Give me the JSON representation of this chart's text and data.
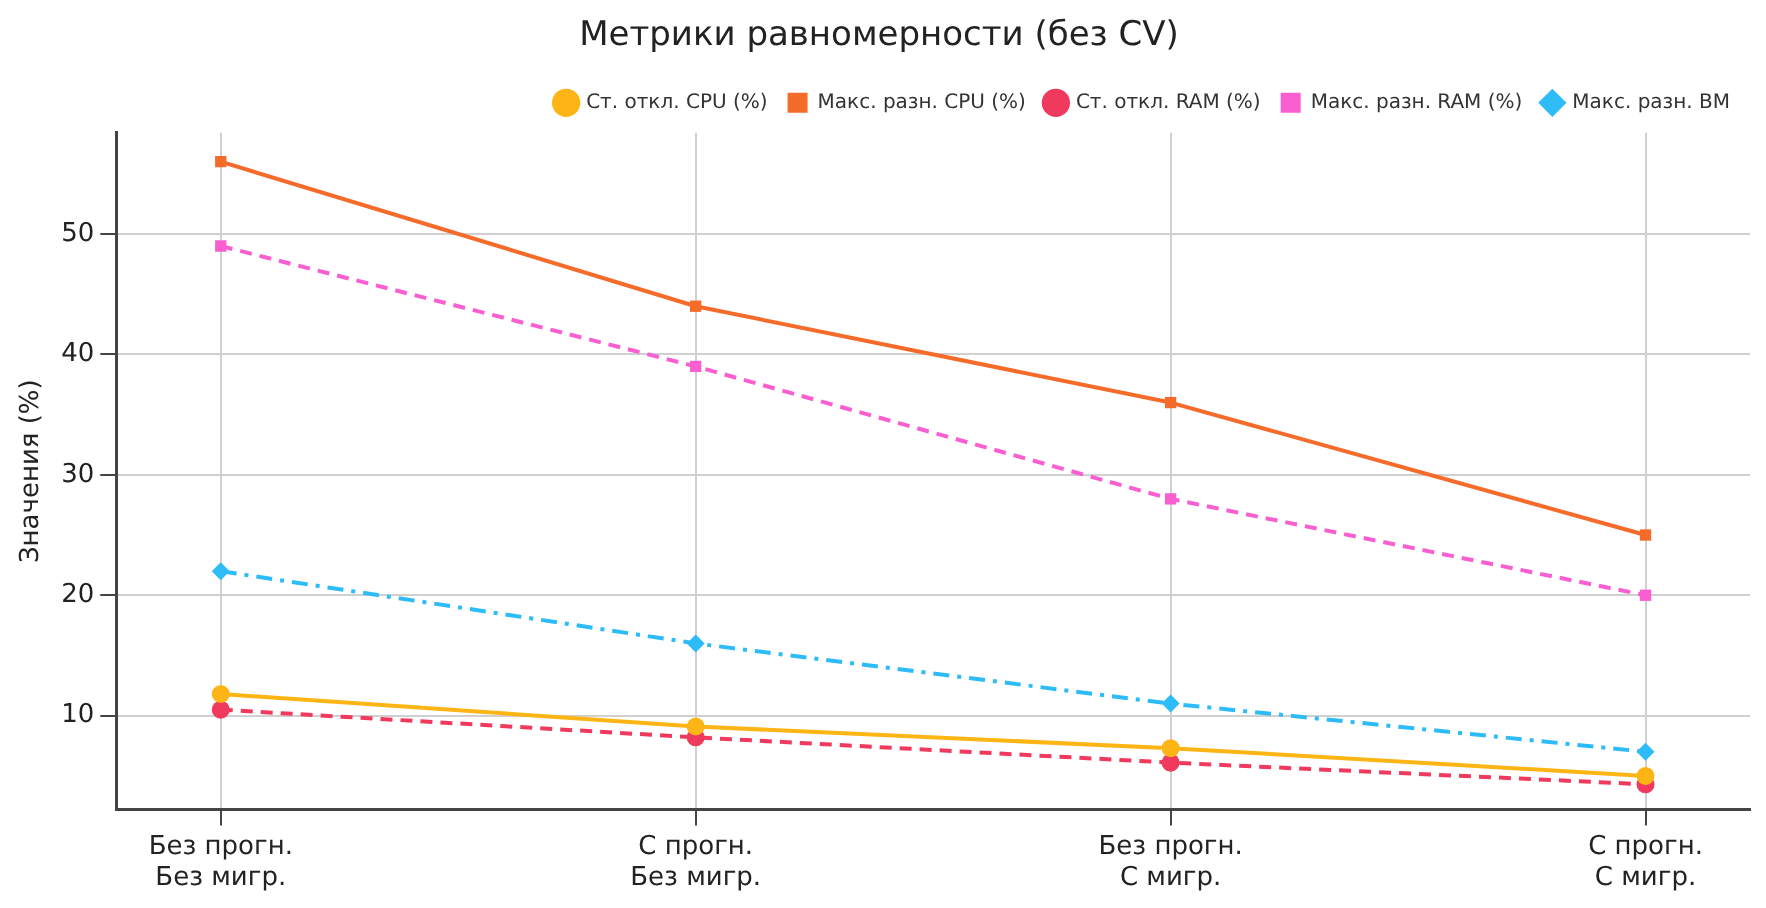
{
  "chart_data": {
    "type": "line",
    "title": "Метрики равномерности (без CV)",
    "ylabel": "Значения (%)",
    "categories": [
      "Без прогн.\nБез мигр.",
      "С прогн.\nБез мигр.",
      "Без прогн.\nС мигр.",
      "С прогн.\nС мигр."
    ],
    "ylim": [
      2.2,
      58.4
    ],
    "yticks": [
      10,
      20,
      30,
      40,
      50
    ],
    "grid": true,
    "legend": "top right",
    "series": [
      {
        "name": "Ст. откл. CPU (%)",
        "color": "#fdb515",
        "marker": "circle",
        "line_style": "solid",
        "values": [
          11.8,
          9.1,
          7.3,
          5.0
        ]
      },
      {
        "name": "Макс. разн. CPU (%)",
        "color": "#f56b2a",
        "marker": "square",
        "line_style": "solid",
        "values": [
          56,
          44,
          36,
          25
        ]
      },
      {
        "name": "Ст. откл. RAM (%)",
        "color": "#ef3a5d",
        "marker": "circle",
        "line_style": "dashed",
        "values": [
          10.5,
          8.2,
          6.1,
          4.3
        ]
      },
      {
        "name": "Макс. разн. RAM (%)",
        "color": "#f95fd0",
        "marker": "square",
        "line_style": "dashed",
        "values": [
          49,
          39,
          28,
          20
        ]
      },
      {
        "name": "Макс. разн. ВМ",
        "color": "#2ebcf9",
        "marker": "diamond",
        "line_style": "dashdot",
        "values": [
          22,
          16,
          11,
          7
        ]
      }
    ]
  }
}
